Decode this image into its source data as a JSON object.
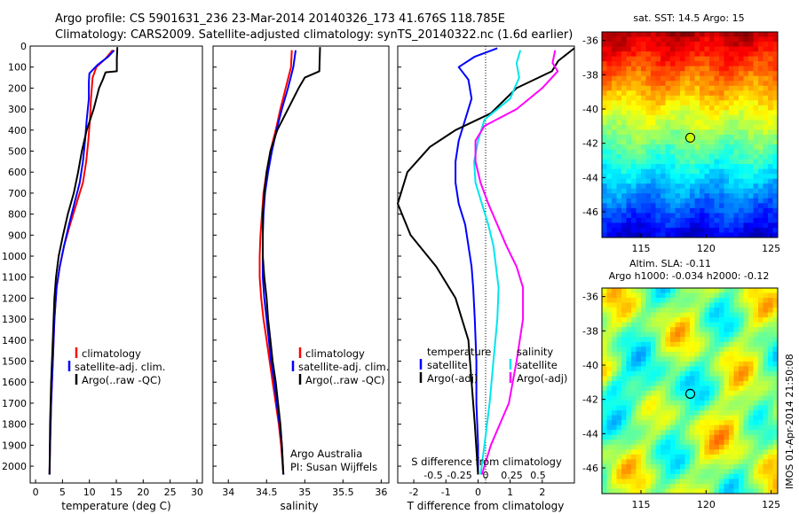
{
  "header": {
    "line1": "Argo profile: CS 5901631_236 23-Mar-2014 20140326_173 41.676S 118.785E",
    "line2": "Climatology: CARS2009. Satellite-adjusted climatology: synTS_20140322.nc (1.6d earlier)"
  },
  "colors": {
    "climatology": "#ff0000",
    "satellite": "#0000ff",
    "argo": "#000000",
    "sal_satellite": "#00e5ee",
    "sal_argo": "#ff00ff"
  },
  "chart_data": [
    {
      "type": "line",
      "panel": "temperature",
      "xlabel": "temperature (deg C)",
      "ylabel": "",
      "xlim": [
        -1,
        31
      ],
      "ylim": [
        2080,
        0
      ],
      "xticks": [
        "0",
        "5",
        "10",
        "15",
        "20",
        "25",
        "30"
      ],
      "yticks": [
        "0",
        "100",
        "200",
        "300",
        "400",
        "500",
        "600",
        "700",
        "800",
        "900",
        "1000",
        "1100",
        "1200",
        "1300",
        "1400",
        "1500",
        "1600",
        "1700",
        "1800",
        "1900",
        "2000"
      ],
      "legend": [
        "climatology",
        "satellite-adj. clim.",
        "Argo(..raw -QC)"
      ],
      "series": [
        {
          "name": "climatology",
          "color": "#ff0000",
          "points": [
            [
              14.3,
              20
            ],
            [
              13,
              60
            ],
            [
              11.3,
              100
            ],
            [
              10.6,
              150
            ],
            [
              10.3,
              250
            ],
            [
              10.1,
              350
            ],
            [
              9.8,
              450
            ],
            [
              9.4,
              550
            ],
            [
              8.8,
              650
            ],
            [
              7.6,
              750
            ],
            [
              6.4,
              850
            ],
            [
              5.3,
              950
            ],
            [
              4.5,
              1050
            ],
            [
              3.9,
              1150
            ],
            [
              3.5,
              1300
            ],
            [
              3.2,
              1500
            ],
            [
              2.9,
              1700
            ],
            [
              2.7,
              1900
            ],
            [
              2.6,
              2040
            ]
          ]
        },
        {
          "name": "satellite-adj. clim.",
          "color": "#0000ff",
          "points": [
            [
              14.6,
              20
            ],
            [
              13.5,
              50
            ],
            [
              11.5,
              90
            ],
            [
              10,
              130
            ],
            [
              9.9,
              170
            ],
            [
              9.9,
              250
            ],
            [
              9.5,
              350
            ],
            [
              9.2,
              450
            ],
            [
              8.8,
              550
            ],
            [
              8.2,
              650
            ],
            [
              7.2,
              750
            ],
            [
              6.2,
              850
            ],
            [
              5.3,
              950
            ],
            [
              4.5,
              1050
            ],
            [
              3.9,
              1150
            ],
            [
              3.5,
              1300
            ],
            [
              3.2,
              1500
            ],
            [
              2.9,
              1700
            ],
            [
              2.7,
              1900
            ],
            [
              2.6,
              2040
            ]
          ]
        },
        {
          "name": "Argo(..raw -QC)",
          "color": "#000000",
          "points": [
            [
              15.2,
              5
            ],
            [
              15.1,
              60
            ],
            [
              15.1,
              120
            ],
            [
              13,
              125
            ],
            [
              12.5,
              160
            ],
            [
              11.8,
              200
            ],
            [
              10.8,
              300
            ],
            [
              9.5,
              400
            ],
            [
              8.6,
              500
            ],
            [
              7.9,
              600
            ],
            [
              7.1,
              700
            ],
            [
              6,
              800
            ],
            [
              5.1,
              900
            ],
            [
              4.3,
              1000
            ],
            [
              3.8,
              1100
            ],
            [
              3.5,
              1200
            ],
            [
              3.2,
              1400
            ],
            [
              2.9,
              1600
            ],
            [
              2.7,
              1800
            ],
            [
              2.6,
              2040
            ]
          ]
        }
      ]
    },
    {
      "type": "line",
      "panel": "salinity",
      "xlabel": "salinity",
      "ylabel": "",
      "xlim": [
        33.8,
        36.1
      ],
      "ylim": [
        2080,
        0
      ],
      "xticks": [
        "34",
        "34.5",
        "35",
        "35.5",
        "36"
      ],
      "legend": [
        "climatology",
        "satellite-adj. clim.",
        "Argo(..raw -QC)"
      ],
      "annotation": [
        "Argo Australia",
        "PI: Susan Wijffels"
      ],
      "series": [
        {
          "name": "climatology",
          "color": "#ff0000",
          "points": [
            [
              34.83,
              20
            ],
            [
              34.82,
              100
            ],
            [
              34.75,
              200
            ],
            [
              34.68,
              300
            ],
            [
              34.62,
              400
            ],
            [
              34.55,
              500
            ],
            [
              34.5,
              600
            ],
            [
              34.46,
              700
            ],
            [
              34.44,
              800
            ],
            [
              34.42,
              900
            ],
            [
              34.41,
              1000
            ],
            [
              34.41,
              1100
            ],
            [
              34.43,
              1200
            ],
            [
              34.46,
              1300
            ],
            [
              34.5,
              1400
            ],
            [
              34.54,
              1500
            ],
            [
              34.58,
              1600
            ],
            [
              34.62,
              1700
            ],
            [
              34.66,
              1800
            ],
            [
              34.69,
              1900
            ],
            [
              34.72,
              2040
            ]
          ]
        },
        {
          "name": "satellite-adj. clim.",
          "color": "#0000ff",
          "points": [
            [
              34.88,
              20
            ],
            [
              34.85,
              100
            ],
            [
              34.78,
              200
            ],
            [
              34.7,
              300
            ],
            [
              34.63,
              400
            ],
            [
              34.57,
              500
            ],
            [
              34.52,
              600
            ],
            [
              34.48,
              700
            ],
            [
              34.46,
              800
            ],
            [
              34.45,
              900
            ],
            [
              34.45,
              1000
            ],
            [
              34.45,
              1100
            ],
            [
              34.47,
              1200
            ],
            [
              34.5,
              1300
            ],
            [
              34.53,
              1400
            ],
            [
              34.56,
              1500
            ],
            [
              34.6,
              1600
            ],
            [
              34.63,
              1700
            ],
            [
              34.67,
              1800
            ],
            [
              34.7,
              1900
            ],
            [
              34.72,
              2040
            ]
          ]
        },
        {
          "name": "Argo(..raw -QC)",
          "color": "#000000",
          "points": [
            [
              35.2,
              5
            ],
            [
              35.19,
              120
            ],
            [
              35.0,
              150
            ],
            [
              34.92,
              200
            ],
            [
              34.78,
              300
            ],
            [
              34.64,
              400
            ],
            [
              34.55,
              500
            ],
            [
              34.5,
              600
            ],
            [
              34.47,
              700
            ],
            [
              34.45,
              800
            ],
            [
              34.45,
              900
            ],
            [
              34.45,
              1000
            ],
            [
              34.47,
              1100
            ],
            [
              34.5,
              1200
            ],
            [
              34.52,
              1300
            ],
            [
              34.55,
              1400
            ],
            [
              34.58,
              1500
            ],
            [
              34.62,
              1600
            ],
            [
              34.65,
              1700
            ],
            [
              34.68,
              1800
            ],
            [
              34.7,
              1900
            ],
            [
              34.72,
              2040
            ]
          ]
        }
      ]
    },
    {
      "type": "line",
      "panel": "difference",
      "xlabel": "T difference from climatology",
      "xlabel_top": "S difference from climatology",
      "xlim": [
        -2.5,
        3
      ],
      "ylim": [
        2080,
        0
      ],
      "xticks": [
        "-2",
        "-1",
        "0",
        "1",
        "2"
      ],
      "xticks_top": [
        "-0.5",
        "-0.25",
        "0",
        "0.25",
        "0.5"
      ],
      "legend_left": {
        "heading": "temperature",
        "entries": [
          "satellite",
          "Argo(-adj)"
        ]
      },
      "legend_right": {
        "heading": "salinity",
        "entries": [
          "satellite",
          "Argo(-adj)"
        ]
      },
      "series": [
        {
          "name": "temperature satellite",
          "color": "#0000ff",
          "points": [
            [
              0.6,
              10
            ],
            [
              -0.1,
              50
            ],
            [
              -0.6,
              100
            ],
            [
              -0.3,
              160
            ],
            [
              -0.2,
              250
            ],
            [
              -0.4,
              350
            ],
            [
              -0.6,
              450
            ],
            [
              -0.7,
              550
            ],
            [
              -0.7,
              650
            ],
            [
              -0.6,
              750
            ],
            [
              -0.4,
              850
            ],
            [
              -0.3,
              950
            ],
            [
              -0.2,
              1050
            ],
            [
              -0.15,
              1150
            ],
            [
              -0.1,
              1300
            ],
            [
              -0.05,
              1500
            ],
            [
              -0.05,
              1700
            ],
            [
              0,
              1900
            ],
            [
              0,
              2040
            ]
          ]
        },
        {
          "name": "temperature Argo(-adj)",
          "color": "#000000",
          "points": [
            [
              3,
              10
            ],
            [
              2.5,
              70
            ],
            [
              2.3,
              120
            ],
            [
              1.2,
              200
            ],
            [
              0.4,
              320
            ],
            [
              -0.7,
              400
            ],
            [
              -1.5,
              480
            ],
            [
              -2.2,
              600
            ],
            [
              -2.5,
              750
            ],
            [
              -2.1,
              900
            ],
            [
              -1.3,
              1050
            ],
            [
              -0.7,
              1200
            ],
            [
              -0.3,
              1400
            ],
            [
              -0.2,
              1600
            ],
            [
              -0.1,
              1800
            ],
            [
              0,
              2040
            ]
          ]
        },
        {
          "name": "salinity satellite",
          "color": "#00e5ee",
          "points": [
            [
              0.33,
              20
            ],
            [
              0.3,
              80
            ],
            [
              0.32,
              150
            ],
            [
              0.25,
              250
            ],
            [
              0.05,
              350
            ],
            [
              0.0,
              450
            ],
            [
              -0.03,
              550
            ],
            [
              -0.02,
              650
            ],
            [
              0.03,
              750
            ],
            [
              0.08,
              850
            ],
            [
              0.12,
              950
            ],
            [
              0.14,
              1050
            ],
            [
              0.16,
              1150
            ],
            [
              0.15,
              1300
            ],
            [
              0.12,
              1500
            ],
            [
              0.09,
              1700
            ],
            [
              0.05,
              1900
            ],
            [
              0.02,
              2040
            ]
          ]
        },
        {
          "name": "salinity Argo(-adj)",
          "color": "#ff00ff",
          "points": [
            [
              0.6,
              20
            ],
            [
              0.58,
              80
            ],
            [
              0.62,
              120
            ],
            [
              0.5,
              200
            ],
            [
              0.3,
              300
            ],
            [
              0.05,
              380
            ],
            [
              -0.02,
              450
            ],
            [
              -0.02,
              550
            ],
            [
              0.02,
              650
            ],
            [
              0.08,
              750
            ],
            [
              0.15,
              850
            ],
            [
              0.22,
              950
            ],
            [
              0.3,
              1050
            ],
            [
              0.35,
              1150
            ],
            [
              0.35,
              1300
            ],
            [
              0.3,
              1500
            ],
            [
              0.24,
              1700
            ],
            [
              0.1,
              1900
            ],
            [
              0.03,
              2040
            ]
          ]
        }
      ]
    },
    {
      "type": "heatmap",
      "panel": "sst",
      "title": "sat. SST: 14.5  Argo: 15",
      "xlim": [
        112,
        125.5
      ],
      "ylim": [
        -47.5,
        -35.5
      ],
      "xticks": [
        "115",
        "120",
        "125"
      ],
      "yticks": [
        "-36",
        "-38",
        "-40",
        "-42",
        "-44",
        "-46"
      ],
      "marker": {
        "lon": 118.785,
        "lat": -41.676,
        "color": "#c8ff00"
      }
    },
    {
      "type": "heatmap",
      "panel": "sla",
      "title": "Altim. SLA: -0.11",
      "subtitle": "Argo h1000: -0.034 h2000: -0.12",
      "xlim": [
        112,
        125.5
      ],
      "ylim": [
        -47.5,
        -35.5
      ],
      "xticks": [
        "115",
        "120",
        "125"
      ],
      "yticks": [
        "-36",
        "-38",
        "-40",
        "-42",
        "-44",
        "-46"
      ],
      "marker": {
        "lon": 118.785,
        "lat": -41.676,
        "color": "#000000"
      }
    }
  ],
  "watermark": "IMOS 01-Apr-2014 21:50:08"
}
